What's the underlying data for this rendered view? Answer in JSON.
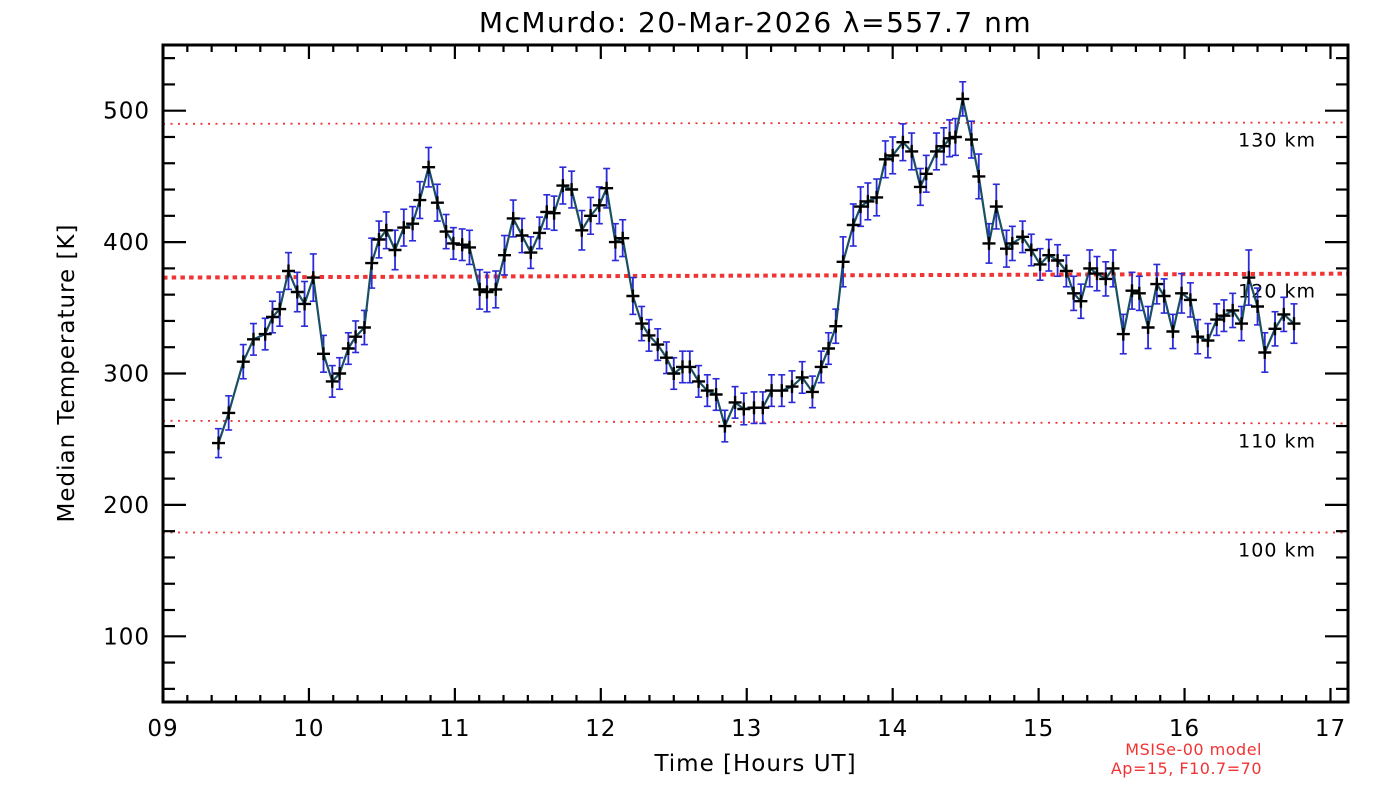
{
  "chart_data": {
    "type": "line",
    "title": "McMurdo: 20-Mar-2026 λ=557.7 nm",
    "xlabel": "Time [Hours UT]",
    "ylabel": "Median Temperature [K]",
    "xlim": [
      9,
      17.12
    ],
    "ylim": [
      50,
      550
    ],
    "x_major_ticks": [
      9,
      10,
      11,
      12,
      13,
      14,
      15,
      16,
      17
    ],
    "x_tick_labels": [
      "09",
      "10",
      "11",
      "12",
      "13",
      "14",
      "15",
      "16",
      "17"
    ],
    "x_minor_divisions": 6,
    "y_major_ticks": [
      100,
      200,
      300,
      400,
      500
    ],
    "y_minor_step": 20,
    "grid": "off",
    "legend": "none",
    "colors": {
      "axis": "#000000",
      "series_line": "#1b4f63",
      "error_bar": "#2a2ad8",
      "marker": "#000000",
      "model_red": "#f03434"
    },
    "model_lines": [
      {
        "label": "130 km",
        "start": 490,
        "end": 491,
        "bold": false
      },
      {
        "label": "120 km",
        "start": 373,
        "end": 376,
        "bold": true
      },
      {
        "label": "110 km",
        "start": 264,
        "end": 262,
        "bold": false
      },
      {
        "label": "100 km",
        "start": 179,
        "end": 179,
        "bold": false
      }
    ],
    "annotation_lines": [
      "MSISe-00 model",
      "Ap=15, F10.7=70"
    ],
    "series": [
      {
        "name": "median-temperature",
        "marker": "plus",
        "points": [
          [
            9.38,
            247,
            11
          ],
          [
            9.45,
            270,
            13
          ],
          [
            9.55,
            309,
            13
          ],
          [
            9.62,
            326,
            12
          ],
          [
            9.7,
            330,
            12
          ],
          [
            9.75,
            343,
            12
          ],
          [
            9.8,
            349,
            13
          ],
          [
            9.86,
            378,
            14
          ],
          [
            9.92,
            362,
            15
          ],
          [
            9.97,
            353,
            17
          ],
          [
            10.03,
            373,
            18
          ],
          [
            10.1,
            315,
            14
          ],
          [
            10.16,
            294,
            12
          ],
          [
            10.21,
            300,
            12
          ],
          [
            10.27,
            319,
            12
          ],
          [
            10.32,
            328,
            12
          ],
          [
            10.38,
            335,
            13
          ],
          [
            10.43,
            384,
            19
          ],
          [
            10.48,
            402,
            14
          ],
          [
            10.53,
            409,
            14
          ],
          [
            10.59,
            394,
            15
          ],
          [
            10.65,
            411,
            14
          ],
          [
            10.71,
            414,
            13
          ],
          [
            10.76,
            432,
            14
          ],
          [
            10.82,
            457,
            15
          ],
          [
            10.88,
            430,
            14
          ],
          [
            10.94,
            408,
            13
          ],
          [
            10.99,
            399,
            12
          ],
          [
            11.05,
            398,
            12
          ],
          [
            11.1,
            396,
            13
          ],
          [
            11.17,
            364,
            15
          ],
          [
            11.22,
            362,
            15
          ],
          [
            11.28,
            364,
            14
          ],
          [
            11.34,
            390,
            15
          ],
          [
            11.4,
            418,
            14
          ],
          [
            11.46,
            405,
            13
          ],
          [
            11.52,
            392,
            12
          ],
          [
            11.58,
            407,
            12
          ],
          [
            11.63,
            423,
            13
          ],
          [
            11.68,
            422,
            13
          ],
          [
            11.74,
            443,
            14
          ],
          [
            11.8,
            440,
            14
          ],
          [
            11.87,
            409,
            15
          ],
          [
            11.93,
            420,
            14
          ],
          [
            11.99,
            428,
            14
          ],
          [
            12.04,
            441,
            15
          ],
          [
            12.1,
            400,
            14
          ],
          [
            12.15,
            403,
            14
          ],
          [
            12.22,
            359,
            14
          ],
          [
            12.28,
            338,
            13
          ],
          [
            12.33,
            329,
            12
          ],
          [
            12.39,
            322,
            12
          ],
          [
            12.45,
            312,
            12
          ],
          [
            12.5,
            300,
            12
          ],
          [
            12.56,
            305,
            12
          ],
          [
            12.61,
            305,
            12
          ],
          [
            12.67,
            294,
            12
          ],
          [
            12.73,
            287,
            12
          ],
          [
            12.79,
            284,
            12
          ],
          [
            12.85,
            260,
            12
          ],
          [
            12.92,
            278,
            12
          ],
          [
            12.98,
            273,
            12
          ],
          [
            13.05,
            274,
            12
          ],
          [
            13.11,
            274,
            12
          ],
          [
            13.17,
            287,
            12
          ],
          [
            13.24,
            287,
            12
          ],
          [
            13.31,
            290,
            12
          ],
          [
            13.38,
            297,
            12
          ],
          [
            13.45,
            286,
            12
          ],
          [
            13.51,
            305,
            12
          ],
          [
            13.56,
            319,
            12
          ],
          [
            13.61,
            336,
            13
          ],
          [
            13.66,
            385,
            19
          ],
          [
            13.73,
            413,
            16
          ],
          [
            13.78,
            427,
            15
          ],
          [
            13.83,
            431,
            14
          ],
          [
            13.89,
            434,
            14
          ],
          [
            13.95,
            463,
            14
          ],
          [
            14.0,
            466,
            14
          ],
          [
            14.07,
            476,
            14
          ],
          [
            14.13,
            469,
            14
          ],
          [
            14.19,
            442,
            14
          ],
          [
            14.23,
            452,
            14
          ],
          [
            14.3,
            469,
            14
          ],
          [
            14.35,
            473,
            14
          ],
          [
            14.39,
            479,
            14
          ],
          [
            14.43,
            480,
            14
          ],
          [
            14.48,
            509,
            13
          ],
          [
            14.54,
            478,
            14
          ],
          [
            14.59,
            450,
            17
          ],
          [
            14.66,
            399,
            15
          ],
          [
            14.71,
            427,
            17
          ],
          [
            14.78,
            395,
            14
          ],
          [
            14.82,
            399,
            13
          ],
          [
            14.89,
            404,
            12
          ],
          [
            14.95,
            394,
            12
          ],
          [
            15.01,
            383,
            12
          ],
          [
            15.07,
            390,
            12
          ],
          [
            15.13,
            386,
            12
          ],
          [
            15.19,
            378,
            12
          ],
          [
            15.24,
            361,
            13
          ],
          [
            15.29,
            355,
            13
          ],
          [
            15.35,
            380,
            14
          ],
          [
            15.4,
            376,
            13
          ],
          [
            15.46,
            372,
            13
          ],
          [
            15.51,
            380,
            14
          ],
          [
            15.58,
            330,
            15
          ],
          [
            15.64,
            363,
            14
          ],
          [
            15.69,
            361,
            13
          ],
          [
            15.75,
            335,
            16
          ],
          [
            15.81,
            368,
            15
          ],
          [
            15.86,
            359,
            13
          ],
          [
            15.92,
            332,
            13
          ],
          [
            15.98,
            361,
            15
          ],
          [
            16.04,
            356,
            13
          ],
          [
            16.09,
            328,
            13
          ],
          [
            16.16,
            325,
            13
          ],
          [
            16.22,
            341,
            12
          ],
          [
            16.27,
            344,
            12
          ],
          [
            16.33,
            348,
            13
          ],
          [
            16.39,
            338,
            13
          ],
          [
            16.44,
            373,
            21
          ],
          [
            16.5,
            351,
            14
          ],
          [
            16.55,
            316,
            15
          ],
          [
            16.62,
            334,
            13
          ],
          [
            16.68,
            345,
            13
          ],
          [
            16.75,
            338,
            15
          ]
        ]
      }
    ]
  }
}
